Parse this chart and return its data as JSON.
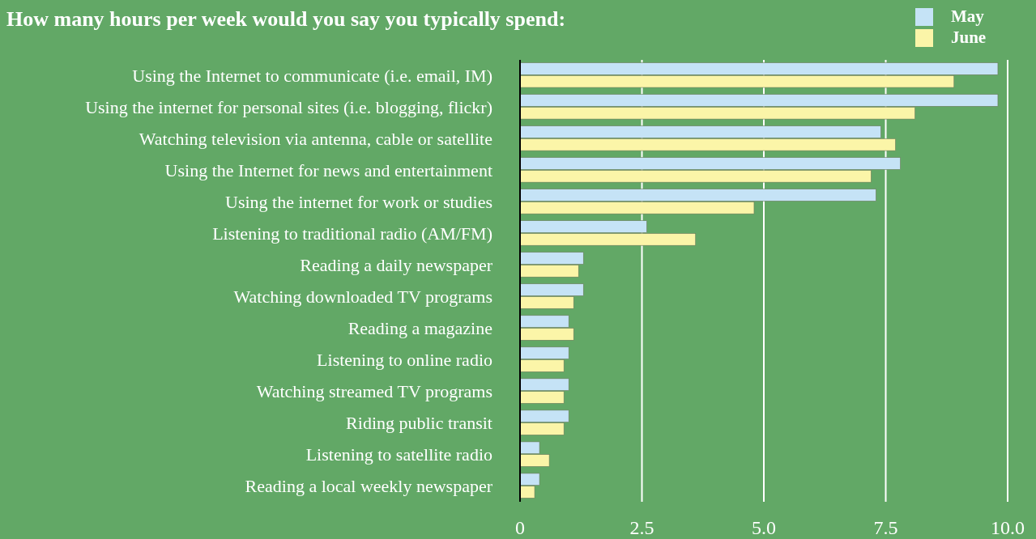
{
  "chart_data": {
    "type": "bar",
    "orientation": "horizontal",
    "title": "How many hours per week would you say you typically spend:",
    "categories": [
      "Using the Internet to communicate (i.e. email, IM)",
      "Using the internet for personal sites (i.e. blogging, flickr)",
      "Watching television via antenna, cable or satellite",
      "Using the Internet for news and entertainment",
      "Using the internet for work or studies",
      "Listening to traditional radio (AM/FM)",
      "Reading a daily newspaper",
      "Watching downloaded TV programs",
      "Reading a magazine",
      "Listening to online radio",
      "Watching streamed TV programs",
      "Riding public transit",
      "Listening to satellite radio",
      "Reading a local weekly newspaper"
    ],
    "series": [
      {
        "name": "May",
        "color": "#c5e3f6",
        "values": [
          9.8,
          9.8,
          7.4,
          7.8,
          7.3,
          2.6,
          1.3,
          1.3,
          1.0,
          1.0,
          1.0,
          1.0,
          0.4,
          0.4
        ]
      },
      {
        "name": "June",
        "color": "#fbf5a8",
        "values": [
          8.9,
          8.1,
          7.7,
          7.2,
          4.8,
          3.6,
          1.2,
          1.1,
          1.1,
          0.9,
          0.9,
          0.9,
          0.6,
          0.3
        ]
      }
    ],
    "xlim": [
      0,
      10
    ],
    "xticks": [
      0,
      {
        "value": 2.5,
        "label": "2.5"
      },
      {
        "value": 5,
        "label": "5.0"
      },
      {
        "value": 7.5,
        "label": "7.5"
      },
      {
        "value": 10,
        "label": "10.0"
      }
    ],
    "grid": "x",
    "legend": "top right"
  }
}
